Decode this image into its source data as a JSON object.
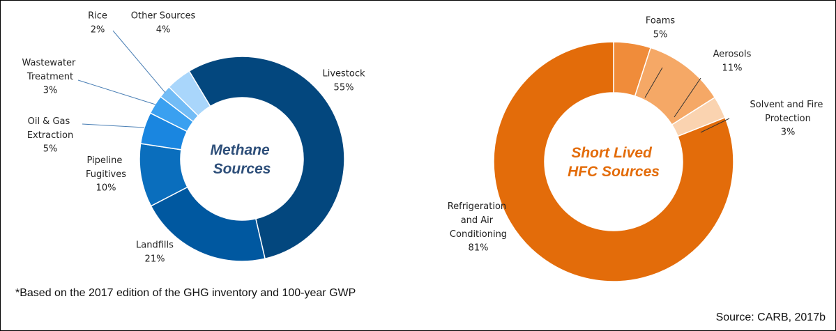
{
  "chart_data": [
    {
      "type": "donut",
      "title": "Methane Sources",
      "categories": [
        "Livestock",
        "Landfills",
        "Pipeline Fugitives",
        "Oil & Gas Extraction",
        "Wastewater Treatment",
        "Rice",
        "Other Sources"
      ],
      "values": [
        55,
        21,
        10,
        5,
        3,
        2,
        4
      ],
      "value_labels": [
        "55%",
        "21%",
        "10%",
        "5%",
        "3%",
        "2%",
        "4%"
      ],
      "colors": [
        "#03477e",
        "#0058a0",
        "#0a6ebd",
        "#1a86e0",
        "#3aa0f0",
        "#72bcf6",
        "#a9d6fb"
      ],
      "title_color": "#2e4f7a"
    },
    {
      "type": "donut",
      "title": "Short Lived HFC Sources",
      "categories": [
        "Foams",
        "Aerosols",
        "Solvent and Fire Protection",
        "Refrigeration and Air Conditioning"
      ],
      "values": [
        5,
        11,
        3,
        81
      ],
      "value_labels": [
        "5%",
        "11%",
        "3%",
        "81%"
      ],
      "colors": [
        "#f08c3a",
        "#f5a866",
        "#fad3b0",
        "#e36c0a"
      ],
      "title_color": "#e36c0a"
    }
  ],
  "footnote": "*Based on the 2017 edition of the GHG inventory and 100-year GWP",
  "source": "Source: CARB, 2017b"
}
